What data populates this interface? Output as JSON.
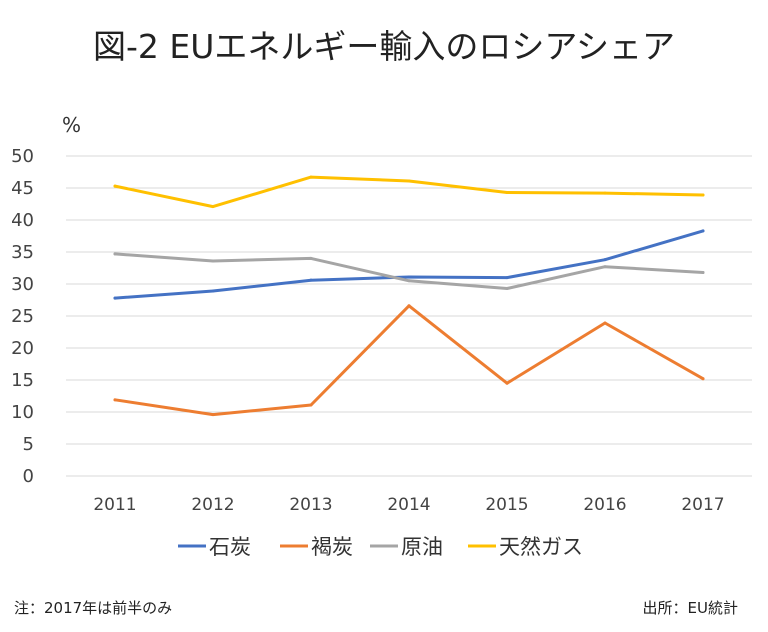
{
  "title": "図-2 EUエネルギー輸入のロシアシェア",
  "note_left": "注：2017年は前半のみ",
  "note_right": "出所：EU統計",
  "chart_data": {
    "type": "line",
    "ylabel": "%",
    "ylim": [
      0,
      50
    ],
    "yticks": [
      "0",
      "5",
      "10",
      "15",
      "20",
      "25",
      "30",
      "35",
      "40",
      "45",
      "50"
    ],
    "x": [
      "2011",
      "2012",
      "2013",
      "2014",
      "2015",
      "2016",
      "2017"
    ],
    "grid": true,
    "legend_position": "bottom",
    "series": [
      {
        "name": "石炭",
        "color": "#4472c4",
        "values": [
          27.8,
          28.9,
          30.6,
          31.1,
          31.0,
          33.8,
          38.3
        ]
      },
      {
        "name": "褐炭",
        "color": "#ed7d31",
        "values": [
          11.9,
          9.6,
          11.1,
          26.6,
          14.5,
          23.9,
          15.2
        ]
      },
      {
        "name": "原油",
        "color": "#a5a5a5",
        "values": [
          34.7,
          33.6,
          34.0,
          30.5,
          29.3,
          32.7,
          31.8
        ]
      },
      {
        "name": "天然ガス",
        "color": "#ffc000",
        "values": [
          45.3,
          42.1,
          46.7,
          46.1,
          44.3,
          44.2,
          43.9
        ]
      }
    ]
  }
}
